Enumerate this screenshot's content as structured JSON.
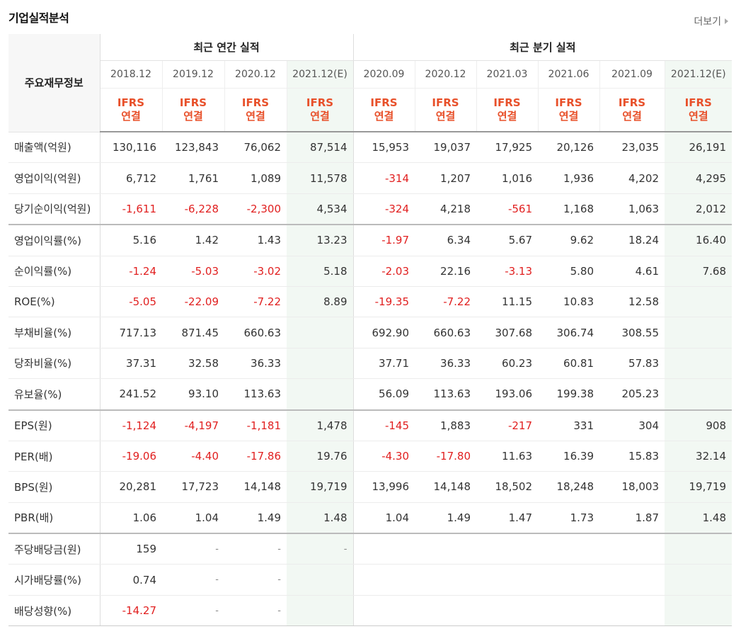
{
  "title": "기업실적분석",
  "more_label": "더보기",
  "headers": {
    "row_header": "주요재무정보",
    "annual_group": "최근 연간 실적",
    "quarter_group": "최근 분기 실적",
    "periods": [
      "2018.12",
      "2019.12",
      "2020.12",
      "2021.12(E)",
      "2020.09",
      "2020.12",
      "2021.03",
      "2021.06",
      "2021.09",
      "2021.12(E)"
    ],
    "basis_line1": "IFRS",
    "basis_line2": "연결"
  },
  "rows": [
    {
      "label": "매출액(억원)",
      "values": [
        "130,116",
        "123,843",
        "76,062",
        "87,514",
        "15,953",
        "19,037",
        "17,925",
        "20,126",
        "23,035",
        "26,191"
      ]
    },
    {
      "label": "영업이익(억원)",
      "values": [
        "6,712",
        "1,761",
        "1,089",
        "11,578",
        "-314",
        "1,207",
        "1,016",
        "1,936",
        "4,202",
        "4,295"
      ]
    },
    {
      "label": "당기순이익(억원)",
      "values": [
        "-1,611",
        "-6,228",
        "-2,300",
        "4,534",
        "-324",
        "4,218",
        "-561",
        "1,168",
        "1,063",
        "2,012"
      ]
    },
    {
      "label": "영업이익률(%)",
      "values": [
        "5.16",
        "1.42",
        "1.43",
        "13.23",
        "-1.97",
        "6.34",
        "5.67",
        "9.62",
        "18.24",
        "16.40"
      ]
    },
    {
      "label": "순이익률(%)",
      "values": [
        "-1.24",
        "-5.03",
        "-3.02",
        "5.18",
        "-2.03",
        "22.16",
        "-3.13",
        "5.80",
        "4.61",
        "7.68"
      ]
    },
    {
      "label": "ROE(%)",
      "values": [
        "-5.05",
        "-22.09",
        "-7.22",
        "8.89",
        "-19.35",
        "-7.22",
        "11.15",
        "10.83",
        "12.58",
        ""
      ]
    },
    {
      "label": "부채비율(%)",
      "values": [
        "717.13",
        "871.45",
        "660.63",
        "",
        "692.90",
        "660.63",
        "307.68",
        "306.74",
        "308.55",
        ""
      ]
    },
    {
      "label": "당좌비율(%)",
      "values": [
        "37.31",
        "32.58",
        "36.33",
        "",
        "37.71",
        "36.33",
        "60.23",
        "60.81",
        "57.83",
        ""
      ]
    },
    {
      "label": "유보율(%)",
      "values": [
        "241.52",
        "93.10",
        "113.63",
        "",
        "56.09",
        "113.63",
        "193.06",
        "199.38",
        "205.23",
        ""
      ]
    },
    {
      "label": "EPS(원)",
      "values": [
        "-1,124",
        "-4,197",
        "-1,181",
        "1,478",
        "-145",
        "1,883",
        "-217",
        "331",
        "304",
        "908"
      ]
    },
    {
      "label": "PER(배)",
      "values": [
        "-19.06",
        "-4.40",
        "-17.86",
        "19.76",
        "-4.30",
        "-17.80",
        "11.63",
        "16.39",
        "15.83",
        "32.14"
      ]
    },
    {
      "label": "BPS(원)",
      "values": [
        "20,281",
        "17,723",
        "14,148",
        "19,719",
        "13,996",
        "14,148",
        "18,502",
        "18,248",
        "18,003",
        "19,719"
      ]
    },
    {
      "label": "PBR(배)",
      "values": [
        "1.06",
        "1.04",
        "1.49",
        "1.48",
        "1.04",
        "1.49",
        "1.47",
        "1.73",
        "1.87",
        "1.48"
      ]
    },
    {
      "label": "주당배당금(원)",
      "values": [
        "159",
        "-",
        "-",
        "-",
        "",
        "",
        "",
        "",
        "",
        ""
      ]
    },
    {
      "label": "시가배당률(%)",
      "values": [
        "0.74",
        "-",
        "-",
        "",
        "",
        "",
        "",
        "",
        "",
        ""
      ]
    },
    {
      "label": "배당성향(%)",
      "values": [
        "-14.27",
        "-",
        "-",
        "",
        "",
        "",
        "",
        "",
        "",
        ""
      ]
    }
  ],
  "group_ends": [
    2,
    8,
    12
  ],
  "colors": {
    "negative": "#e12020",
    "basis": "#e8502a",
    "estimate_bg": "#f2f8f3"
  }
}
